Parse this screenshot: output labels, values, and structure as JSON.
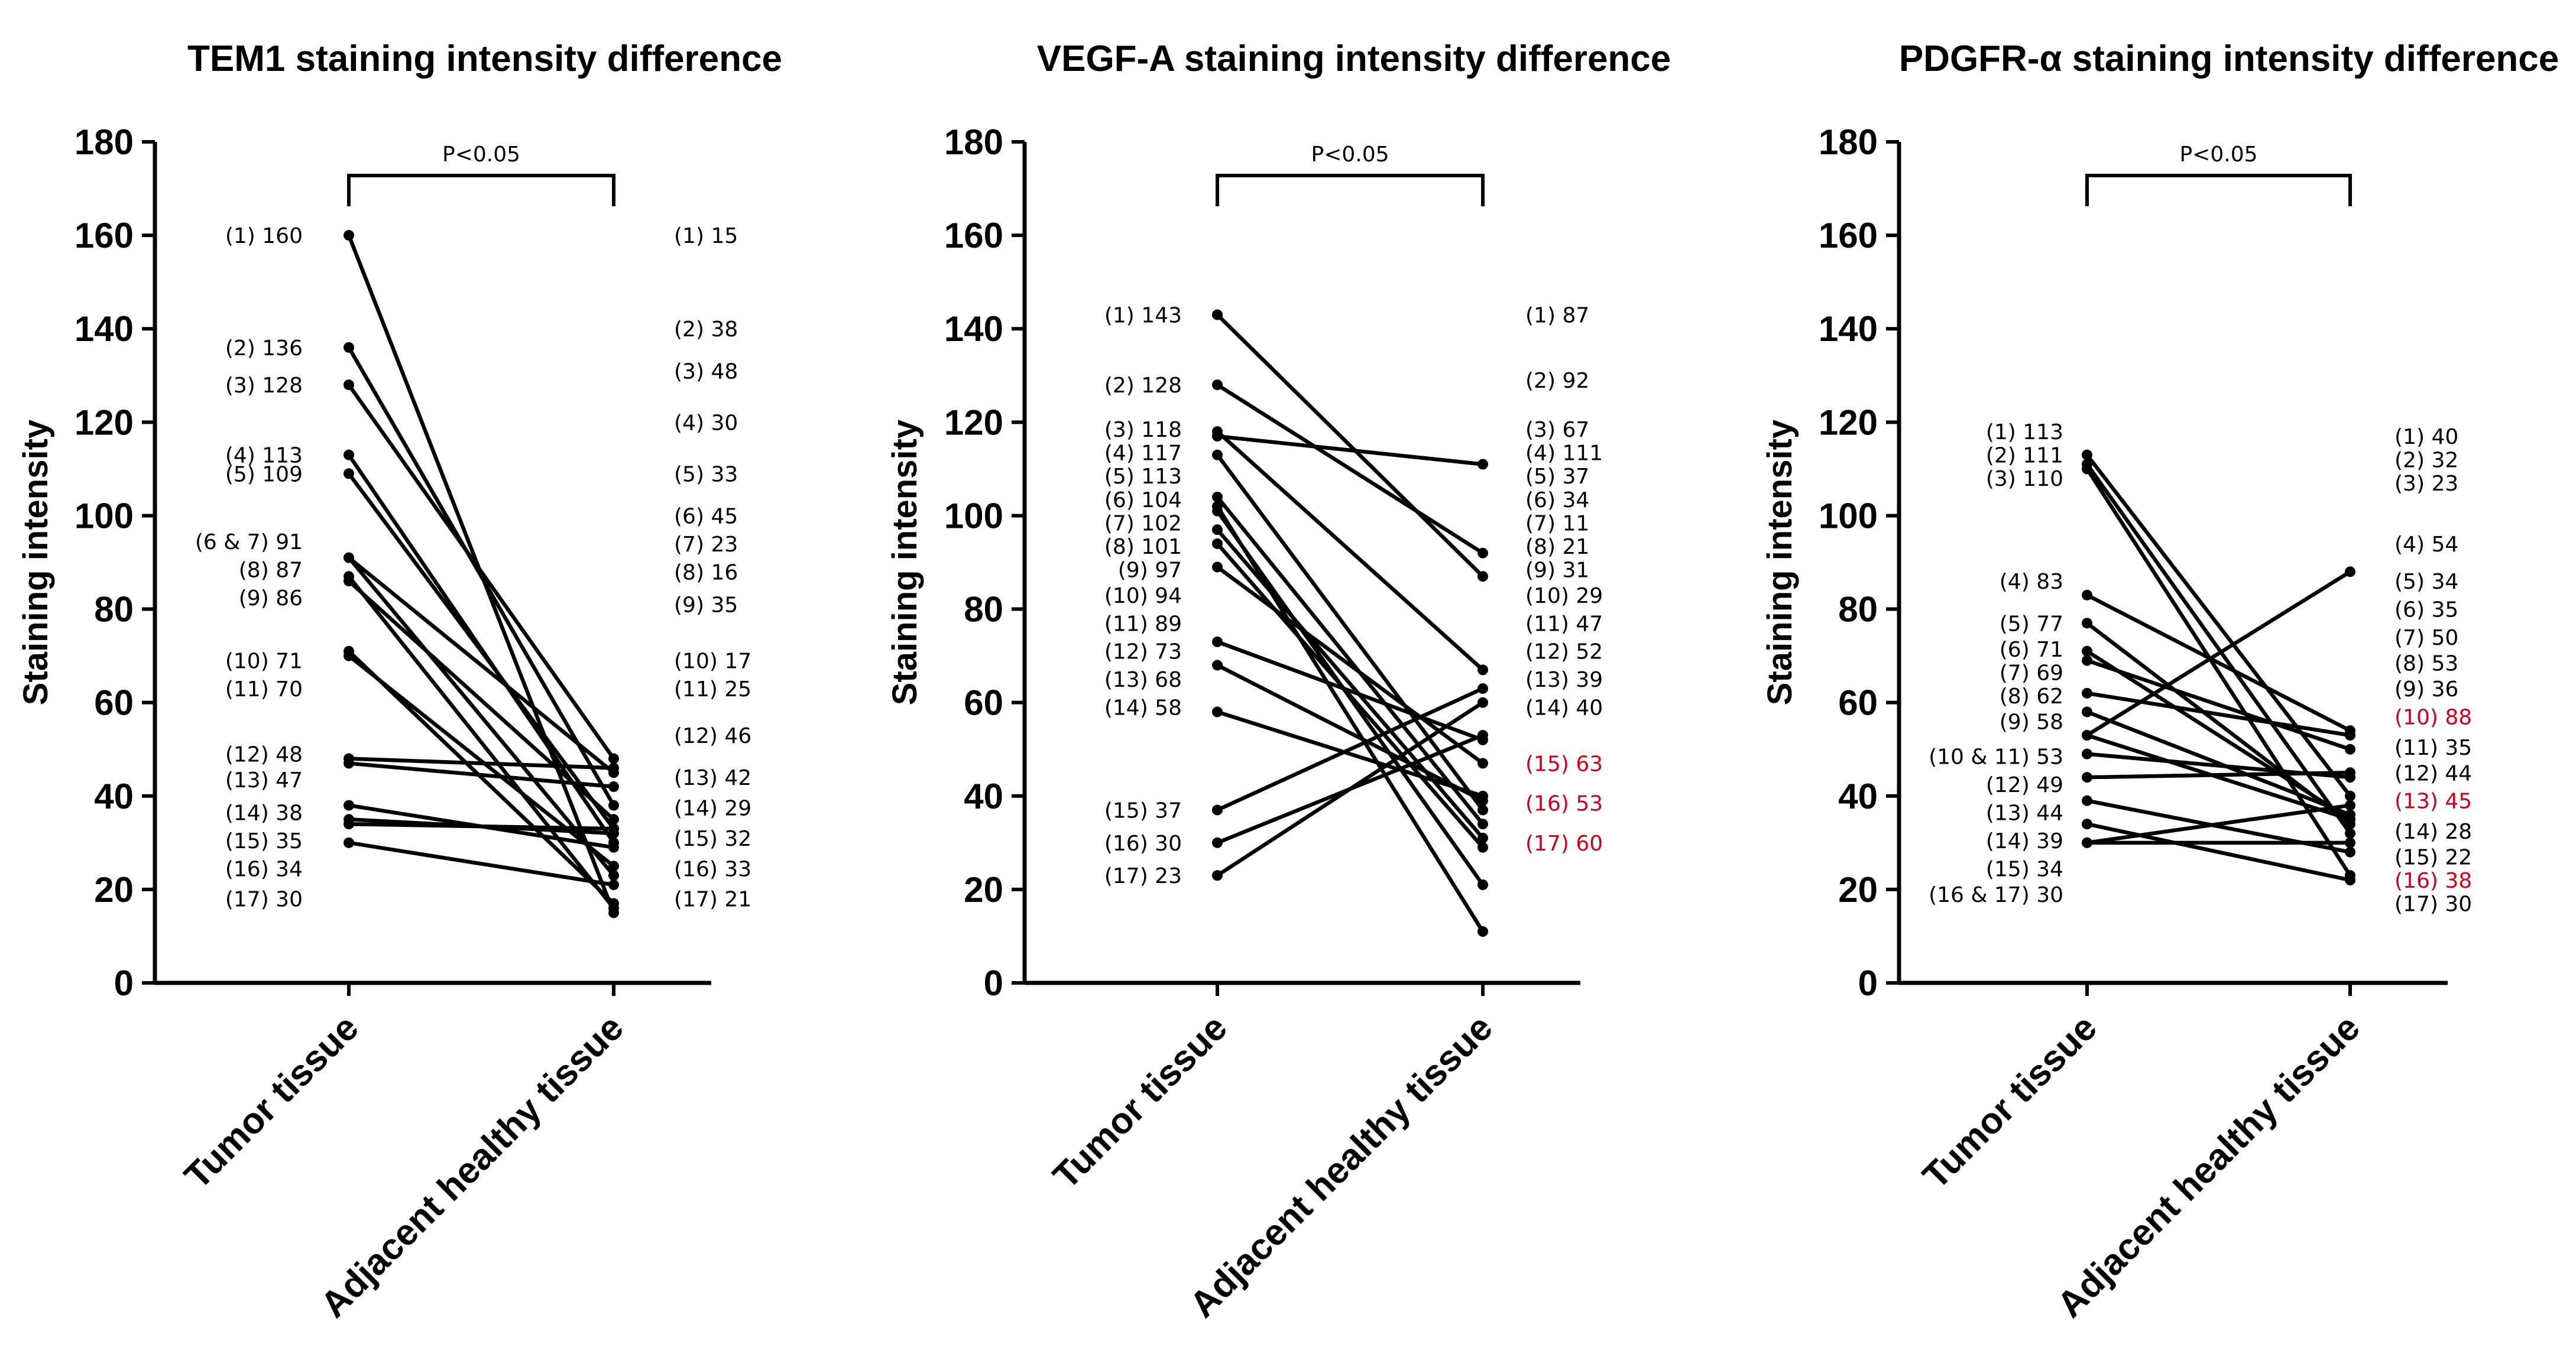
{
  "chart_data": [
    {
      "type": "line",
      "title": "TEM1 staining intensity difference",
      "ylabel": "Staining intensity",
      "categories": [
        "Tumor tissue",
        "Adjacent healthy tissue"
      ],
      "ylim": [
        0,
        180
      ],
      "yticks": [
        0,
        20,
        40,
        60,
        80,
        100,
        120,
        140,
        160,
        180
      ],
      "significance": "P<0.05",
      "tumor_values": [
        160,
        136,
        128,
        113,
        109,
        91,
        91,
        87,
        86,
        71,
        70,
        48,
        47,
        38,
        35,
        34,
        30
      ],
      "healthy_values": [
        15,
        38,
        48,
        30,
        33,
        45,
        23,
        16,
        35,
        17,
        25,
        46,
        42,
        29,
        32,
        33,
        21
      ],
      "tumor_labels": [
        {
          "text": "(1) 160",
          "at": 160
        },
        {
          "text": "(2) 136",
          "at": 136
        },
        {
          "text": "(3) 128",
          "at": 128
        },
        {
          "text": "(4) 113",
          "at": 113
        },
        {
          "text": "(5) 109",
          "at": 109
        },
        {
          "text": "(6 & 7) 91",
          "at": 94.5
        },
        {
          "text": "(8) 87",
          "at": 88.5
        },
        {
          "text": "(9) 86",
          "at": 82.5
        },
        {
          "text": "(10) 71",
          "at": 69
        },
        {
          "text": "(11) 70",
          "at": 63
        },
        {
          "text": "(12) 48",
          "at": 49
        },
        {
          "text": "(13) 47",
          "at": 43.5
        },
        {
          "text": "(14) 38",
          "at": 36.5
        },
        {
          "text": "(15) 35",
          "at": 30.5
        },
        {
          "text": "(16) 34",
          "at": 24.5
        },
        {
          "text": "(17) 30",
          "at": 18
        }
      ],
      "healthy_labels": [
        {
          "text": "(1) 15",
          "at": 160,
          "highlight": false
        },
        {
          "text": "(2) 38",
          "at": 140,
          "highlight": false
        },
        {
          "text": "(3) 48",
          "at": 131,
          "highlight": false
        },
        {
          "text": "(4) 30",
          "at": 120,
          "highlight": false
        },
        {
          "text": "(5) 33",
          "at": 109,
          "highlight": false
        },
        {
          "text": "(6) 45",
          "at": 100,
          "highlight": false
        },
        {
          "text": "(7) 23",
          "at": 94,
          "highlight": false
        },
        {
          "text": "(8) 16",
          "at": 88,
          "highlight": false
        },
        {
          "text": "(9) 35",
          "at": 81,
          "highlight": false
        },
        {
          "text": "(10) 17",
          "at": 69,
          "highlight": false
        },
        {
          "text": "(11) 25",
          "at": 63,
          "highlight": false
        },
        {
          "text": "(12) 46",
          "at": 53,
          "highlight": false
        },
        {
          "text": "(13) 42",
          "at": 44,
          "highlight": false
        },
        {
          "text": "(14) 29",
          "at": 37.5,
          "highlight": false
        },
        {
          "text": "(15) 32",
          "at": 31,
          "highlight": false
        },
        {
          "text": "(16) 33",
          "at": 24.5,
          "highlight": false
        },
        {
          "text": "(17) 21",
          "at": 18,
          "highlight": false
        }
      ]
    },
    {
      "type": "line",
      "title": "VEGF-A staining intensity difference",
      "ylabel": "Staining intensity",
      "categories": [
        "Tumor tissue",
        "Adjacent healthy tissue"
      ],
      "ylim": [
        0,
        180
      ],
      "yticks": [
        0,
        20,
        40,
        60,
        80,
        100,
        120,
        140,
        160,
        180
      ],
      "significance": "P<0.05",
      "tumor_values": [
        143,
        128,
        118,
        117,
        113,
        104,
        102,
        101,
        97,
        94,
        89,
        73,
        68,
        58,
        37,
        30,
        23
      ],
      "healthy_values": [
        87,
        92,
        67,
        111,
        37,
        34,
        11,
        21,
        31,
        29,
        47,
        52,
        39,
        40,
        63,
        53,
        60
      ],
      "tumor_labels": [
        {
          "text": "(1) 143",
          "at": 143
        },
        {
          "text": "(2) 128",
          "at": 128
        },
        {
          "text": "(3) 118",
          "at": 118.5
        },
        {
          "text": "(4) 117",
          "at": 113.5
        },
        {
          "text": "(5) 113",
          "at": 108.5
        },
        {
          "text": "(6) 104",
          "at": 103.5
        },
        {
          "text": "(7) 102",
          "at": 98.5
        },
        {
          "text": "(8) 101",
          "at": 93.5
        },
        {
          "text": "(9) 97",
          "at": 88.5
        },
        {
          "text": "(10) 94",
          "at": 83
        },
        {
          "text": "(11) 89",
          "at": 77
        },
        {
          "text": "(12) 73",
          "at": 71
        },
        {
          "text": "(13) 68",
          "at": 65
        },
        {
          "text": "(14) 58",
          "at": 59
        },
        {
          "text": "(15) 37",
          "at": 37
        },
        {
          "text": "(16) 30",
          "at": 30
        },
        {
          "text": "(17) 23",
          "at": 23
        }
      ],
      "healthy_labels": [
        {
          "text": "(1) 87",
          "at": 143,
          "highlight": false
        },
        {
          "text": "(2) 92",
          "at": 129,
          "highlight": false
        },
        {
          "text": "(3) 67",
          "at": 118.5,
          "highlight": false
        },
        {
          "text": "(4) 111",
          "at": 113.5,
          "highlight": false
        },
        {
          "text": "(5) 37",
          "at": 108.5,
          "highlight": false
        },
        {
          "text": "(6) 34",
          "at": 103.5,
          "highlight": false
        },
        {
          "text": "(7) 11",
          "at": 98.5,
          "highlight": false
        },
        {
          "text": "(8) 21",
          "at": 93.5,
          "highlight": false
        },
        {
          "text": "(9) 31",
          "at": 88.5,
          "highlight": false
        },
        {
          "text": "(10) 29",
          "at": 83,
          "highlight": false
        },
        {
          "text": "(11) 47",
          "at": 77,
          "highlight": false
        },
        {
          "text": "(12) 52",
          "at": 71,
          "highlight": false
        },
        {
          "text": "(13) 39",
          "at": 65,
          "highlight": false
        },
        {
          "text": "(14) 40",
          "at": 59,
          "highlight": false
        },
        {
          "text": "(15) 63",
          "at": 47,
          "highlight": true
        },
        {
          "text": "(16) 53",
          "at": 38.5,
          "highlight": true
        },
        {
          "text": "(17) 60",
          "at": 30,
          "highlight": true
        }
      ]
    },
    {
      "type": "line",
      "title": "PDGFR-α staining intensity difference",
      "ylabel": "Staining intensity",
      "categories": [
        "Tumor tissue",
        "Adjacent healthy tissue"
      ],
      "ylim": [
        0,
        180
      ],
      "yticks": [
        0,
        20,
        40,
        60,
        80,
        100,
        120,
        140,
        160,
        180
      ],
      "significance": "P<0.05",
      "tumor_values": [
        113,
        111,
        110,
        83,
        77,
        71,
        69,
        62,
        58,
        53,
        53,
        49,
        44,
        39,
        34,
        30,
        30
      ],
      "healthy_values": [
        40,
        32,
        23,
        54,
        34,
        35,
        50,
        53,
        36,
        88,
        35,
        44,
        45,
        28,
        22,
        38,
        30
      ],
      "tumor_labels": [
        {
          "text": "(1) 113",
          "at": 118
        },
        {
          "text": "(2) 111",
          "at": 113
        },
        {
          "text": "(3) 110",
          "at": 108
        },
        {
          "text": "(4) 83",
          "at": 86
        },
        {
          "text": "(5) 77",
          "at": 77
        },
        {
          "text": "(6) 71",
          "at": 71.5
        },
        {
          "text": "(7) 69",
          "at": 66.5
        },
        {
          "text": "(8) 62",
          "at": 61.5
        },
        {
          "text": "(9) 58",
          "at": 56
        },
        {
          "text": "(10 & 11) 53",
          "at": 48.5
        },
        {
          "text": "(12) 49",
          "at": 42.5
        },
        {
          "text": "(13) 44",
          "at": 36.5
        },
        {
          "text": "(14) 39",
          "at": 30.5
        },
        {
          "text": "(15) 34",
          "at": 24.5
        },
        {
          "text": "(16 & 17) 30",
          "at": 19
        }
      ],
      "healthy_labels": [
        {
          "text": "(1) 40",
          "at": 117,
          "highlight": false
        },
        {
          "text": "(2) 32",
          "at": 112,
          "highlight": false
        },
        {
          "text": "(3) 23",
          "at": 107,
          "highlight": false
        },
        {
          "text": "(4) 54",
          "at": 94,
          "highlight": false
        },
        {
          "text": "(5) 34",
          "at": 86,
          "highlight": false
        },
        {
          "text": "(6) 35",
          "at": 80,
          "highlight": false
        },
        {
          "text": "(7) 50",
          "at": 74,
          "highlight": false
        },
        {
          "text": "(8) 53",
          "at": 68.5,
          "highlight": false
        },
        {
          "text": "(9) 36",
          "at": 63,
          "highlight": false
        },
        {
          "text": "(10) 88",
          "at": 57,
          "highlight": true
        },
        {
          "text": "(11) 35",
          "at": 50.5,
          "highlight": false
        },
        {
          "text": "(12) 44",
          "at": 45,
          "highlight": false
        },
        {
          "text": "(13) 45",
          "at": 39,
          "highlight": true
        },
        {
          "text": "(14) 28",
          "at": 32.5,
          "highlight": false
        },
        {
          "text": "(15) 22",
          "at": 27,
          "highlight": false
        },
        {
          "text": "(16) 38",
          "at": 22,
          "highlight": true
        },
        {
          "text": "(17) 30",
          "at": 17,
          "highlight": false
        }
      ]
    }
  ],
  "colors": {
    "line": "#000000",
    "highlight": "#d0021b",
    "background": "#ffffff"
  }
}
